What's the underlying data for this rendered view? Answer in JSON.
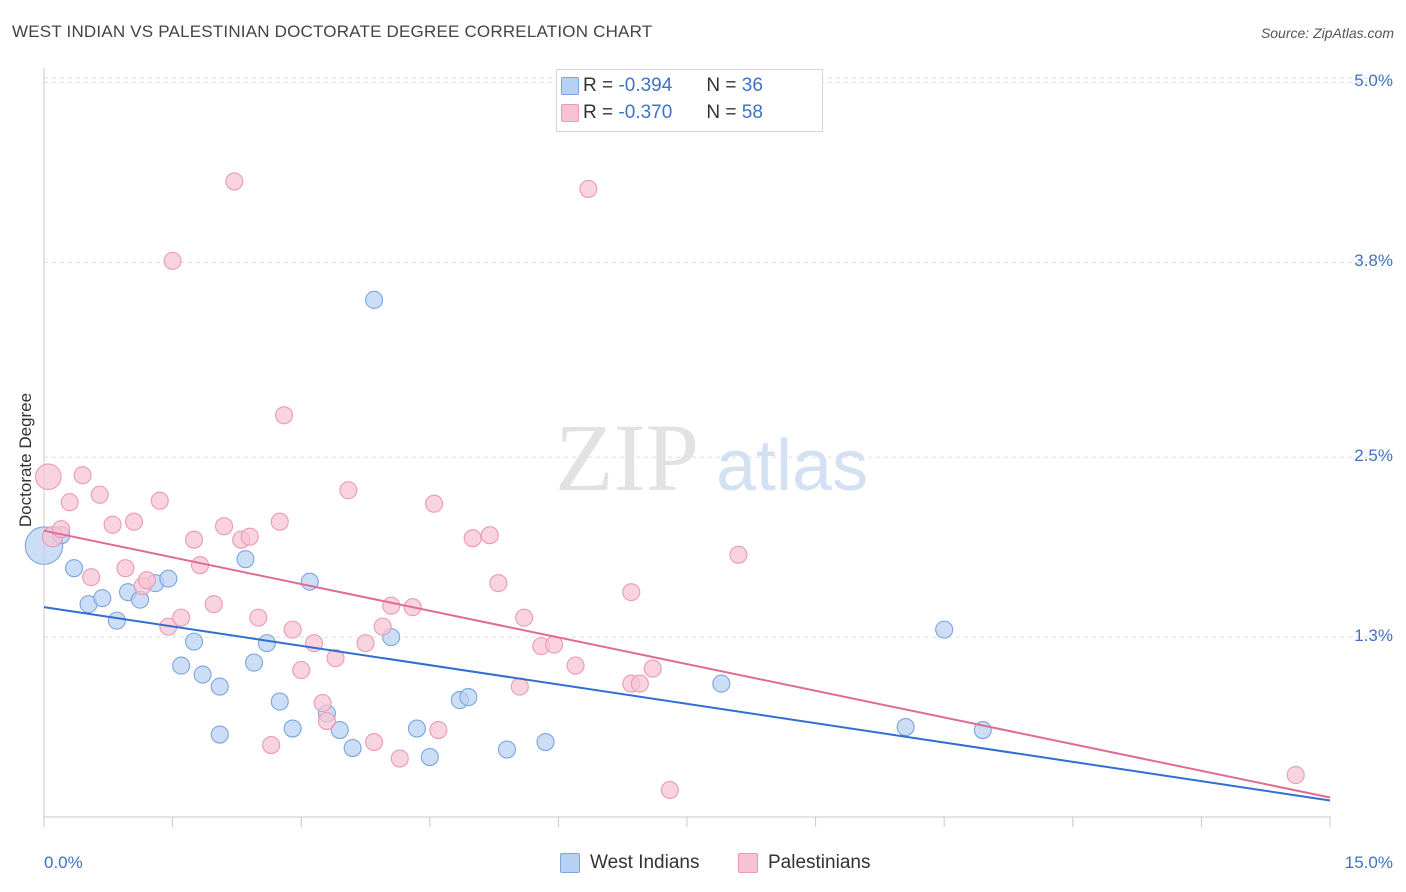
{
  "header": {
    "title": "WEST INDIAN VS PALESTINIAN DOCTORATE DEGREE CORRELATION CHART",
    "source": "Source: ZipAtlas.com"
  },
  "watermark": {
    "zip": "ZIP",
    "atlas": "atlas"
  },
  "legend_top": {
    "rows": [
      {
        "r_label": "R =",
        "r_value": "-0.394",
        "n_label": "N =",
        "n_value": "36"
      },
      {
        "r_label": "R =",
        "r_value": "-0.370",
        "n_label": "N =",
        "n_value": "58"
      }
    ]
  },
  "legend_bottom": {
    "items": [
      "West Indians",
      "Palestinians"
    ]
  },
  "colors": {
    "blue_fill": "#b8d1f3",
    "blue_stroke": "#7ba5e0",
    "blue_line": "#2f6fcf",
    "pink_fill": "#f7c3d3",
    "pink_stroke": "#eb9ab4",
    "pink_line": "#e06b94",
    "tick_text": "#3d73c4",
    "grid": "#dddddd"
  },
  "chart_data": {
    "type": "scatter",
    "title": "WEST INDIAN VS PALESTINIAN DOCTORATE DEGREE CORRELATION CHART",
    "xlabel": "",
    "ylabel": "Doctorate Degree",
    "x_unit": "%",
    "y_unit": "%",
    "xlim": [
      0,
      15
    ],
    "ylim": [
      0.1,
      5.05
    ],
    "x_ticks": [
      "0.0%",
      "15.0%"
    ],
    "y_ticks": [
      {
        "value": 5.0,
        "label": "5.0%"
      },
      {
        "value": 3.8,
        "label": "3.8%"
      },
      {
        "value": 2.5,
        "label": "2.5%"
      },
      {
        "value": 1.3,
        "label": "1.3%"
      }
    ],
    "grid": true,
    "legend": "top-center",
    "series": [
      {
        "name": "West Indians",
        "R": -0.394,
        "N": 36,
        "trend": [
          [
            0,
            1.5
          ],
          [
            15,
            0.21
          ]
        ],
        "points": [
          [
            0.0,
            1.91,
            2.2
          ],
          [
            0.2,
            1.98,
            1
          ],
          [
            0.35,
            1.76,
            1
          ],
          [
            0.52,
            1.52,
            1
          ],
          [
            0.68,
            1.56,
            1
          ],
          [
            0.85,
            1.41,
            1
          ],
          [
            0.98,
            1.6,
            1
          ],
          [
            1.12,
            1.55,
            1
          ],
          [
            1.3,
            1.66,
            1
          ],
          [
            1.45,
            1.69,
            1
          ],
          [
            1.6,
            1.11,
            1
          ],
          [
            1.75,
            1.27,
            1
          ],
          [
            1.85,
            1.05,
            1
          ],
          [
            2.05,
            0.97,
            1
          ],
          [
            2.05,
            0.65,
            1
          ],
          [
            2.35,
            1.82,
            1
          ],
          [
            2.45,
            1.13,
            1
          ],
          [
            2.6,
            1.26,
            1
          ],
          [
            2.75,
            0.87,
            1
          ],
          [
            2.9,
            0.69,
            1
          ],
          [
            3.1,
            1.67,
            1
          ],
          [
            3.3,
            0.79,
            1
          ],
          [
            3.45,
            0.68,
            1
          ],
          [
            3.6,
            0.56,
            1
          ],
          [
            3.85,
            3.55,
            1
          ],
          [
            4.05,
            1.3,
            1
          ],
          [
            4.35,
            0.69,
            1
          ],
          [
            4.5,
            0.5,
            1
          ],
          [
            4.85,
            0.88,
            1
          ],
          [
            4.95,
            0.9,
            1
          ],
          [
            5.4,
            0.55,
            1
          ],
          [
            5.85,
            0.6,
            1
          ],
          [
            7.9,
            0.99,
            1
          ],
          [
            10.05,
            0.7,
            1
          ],
          [
            10.5,
            1.35,
            1
          ],
          [
            10.95,
            0.68,
            1
          ]
        ]
      },
      {
        "name": "Palestinians",
        "R": -0.37,
        "N": 58,
        "trend": [
          [
            0,
            2.01
          ],
          [
            15,
            0.23
          ]
        ],
        "points": [
          [
            0.05,
            2.37,
            1.5
          ],
          [
            0.1,
            1.97,
            1.2
          ],
          [
            0.2,
            2.02,
            1
          ],
          [
            0.3,
            2.2,
            1
          ],
          [
            0.45,
            2.38,
            1
          ],
          [
            0.55,
            1.7,
            1
          ],
          [
            0.65,
            2.25,
            1
          ],
          [
            0.8,
            2.05,
            1
          ],
          [
            0.95,
            1.76,
            1
          ],
          [
            1.05,
            2.07,
            1
          ],
          [
            1.15,
            1.64,
            1
          ],
          [
            1.2,
            1.68,
            1
          ],
          [
            1.35,
            2.21,
            1
          ],
          [
            1.45,
            1.37,
            1
          ],
          [
            1.6,
            1.43,
            1
          ],
          [
            1.75,
            1.95,
            1
          ],
          [
            1.82,
            1.78,
            1
          ],
          [
            1.98,
            1.52,
            1
          ],
          [
            2.1,
            2.04,
            1
          ],
          [
            2.22,
            4.34,
            1
          ],
          [
            2.3,
            1.95,
            1
          ],
          [
            2.4,
            1.97,
            1
          ],
          [
            2.5,
            1.43,
            1
          ],
          [
            2.65,
            0.58,
            1
          ],
          [
            2.75,
            2.07,
            1
          ],
          [
            2.8,
            2.78,
            1
          ],
          [
            2.9,
            1.35,
            1
          ],
          [
            3.0,
            1.08,
            1
          ],
          [
            3.15,
            1.26,
            1
          ],
          [
            3.25,
            0.86,
            1
          ],
          [
            3.3,
            0.74,
            1
          ],
          [
            3.4,
            1.16,
            1
          ],
          [
            3.55,
            2.28,
            1
          ],
          [
            3.75,
            1.26,
            1
          ],
          [
            3.85,
            0.6,
            1
          ],
          [
            3.95,
            1.37,
            1
          ],
          [
            4.05,
            1.51,
            1
          ],
          [
            4.15,
            0.49,
            1
          ],
          [
            4.3,
            1.5,
            1
          ],
          [
            4.55,
            2.19,
            1
          ],
          [
            4.6,
            0.68,
            1
          ],
          [
            5.0,
            1.96,
            1
          ],
          [
            5.2,
            1.98,
            1
          ],
          [
            5.3,
            1.66,
            1
          ],
          [
            5.55,
            0.97,
            1
          ],
          [
            5.6,
            1.43,
            1
          ],
          [
            5.8,
            1.24,
            1
          ],
          [
            5.95,
            1.25,
            1
          ],
          [
            6.2,
            1.11,
            1
          ],
          [
            6.35,
            4.29,
            1
          ],
          [
            6.85,
            1.6,
            1
          ],
          [
            6.85,
            0.99,
            1
          ],
          [
            6.95,
            0.99,
            1
          ],
          [
            7.1,
            1.09,
            1
          ],
          [
            7.3,
            0.28,
            1
          ],
          [
            8.1,
            1.85,
            1
          ],
          [
            14.6,
            0.38,
            1
          ],
          [
            1.5,
            3.81,
            1
          ]
        ]
      }
    ]
  }
}
